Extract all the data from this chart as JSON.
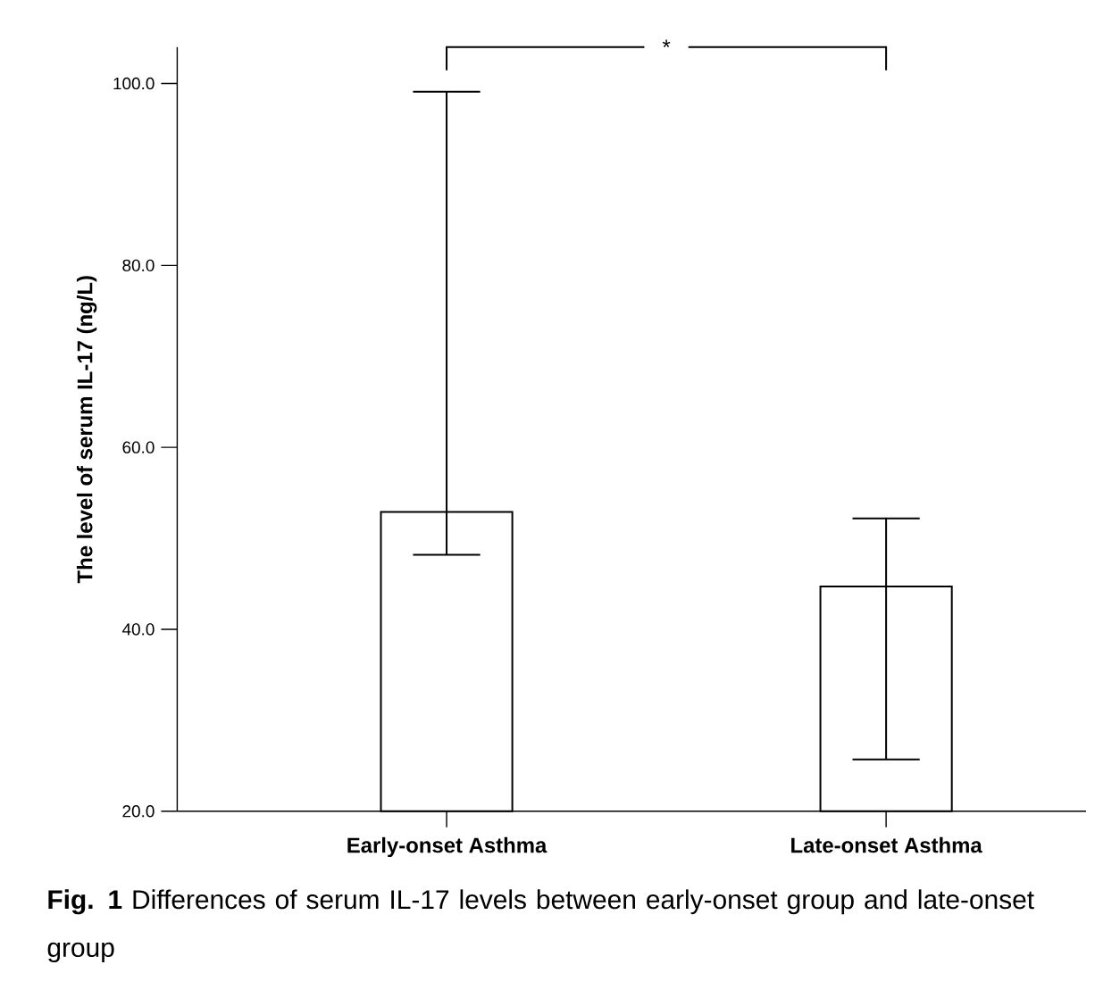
{
  "chart_data": {
    "type": "bar",
    "ylabel": "The level of serum IL-17 (ng/L)",
    "categories": [
      "Early-onset Asthma",
      "Late-onset Asthma"
    ],
    "values": [
      52.9,
      44.7
    ],
    "errors": [
      [
        48.2,
        99.1
      ],
      [
        25.7,
        52.2
      ]
    ],
    "colors": [
      "#000000",
      "#000000"
    ],
    "ylim": [
      20,
      104
    ],
    "yticks": [
      {
        "value": 20,
        "label": "20.0"
      },
      {
        "value": 40,
        "label": "40.0"
      },
      {
        "value": 60,
        "label": "60.0"
      },
      {
        "value": 80,
        "label": "80.0"
      },
      {
        "value": 100,
        "label": "100.0"
      }
    ],
    "annotations": [
      "*",
      "**Fig. 1** Differences of serum IL-17 levels between early-onset group and late-onset group"
    ]
  }
}
